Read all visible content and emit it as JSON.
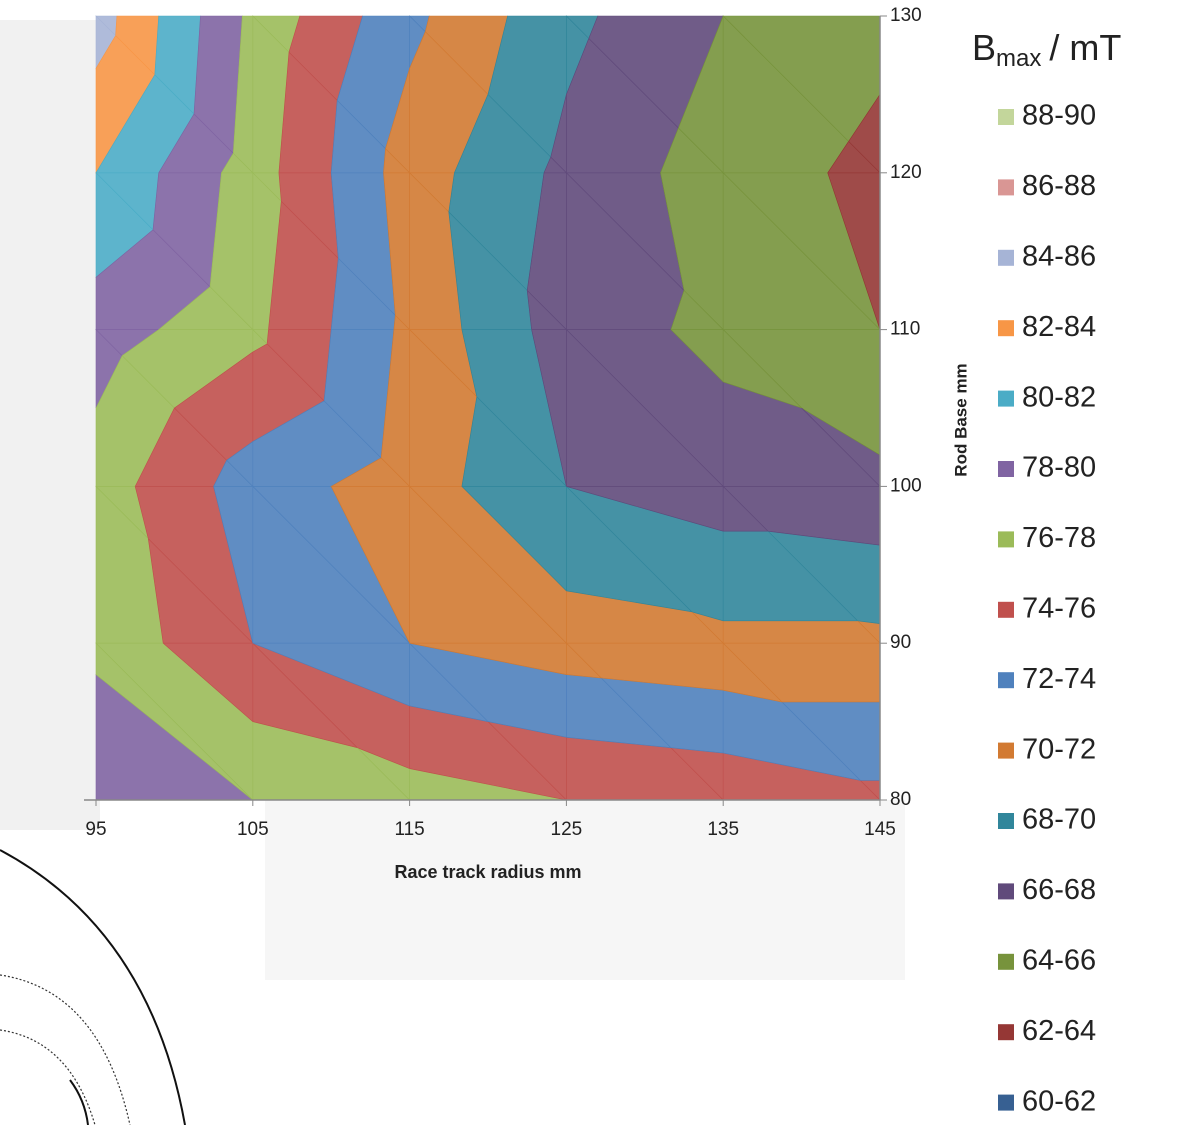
{
  "chart_data": {
    "type": "contour",
    "x_label": "Race track radius mm",
    "y_label": "Rod Base mm",
    "legend_title": {
      "base": "B",
      "sub": "max",
      "unit": "/ mT"
    },
    "x": [
      95,
      105,
      115,
      125,
      135,
      145
    ],
    "y": [
      80,
      90,
      100,
      110,
      120,
      130
    ],
    "z": [
      [
        80,
        78,
        77,
        76,
        75.5,
        74.5
      ],
      [
        77.5,
        74,
        72,
        71,
        70.5,
        70.5
      ],
      [
        77,
        73,
        71,
        68,
        67,
        66.5
      ],
      [
        79,
        76.5,
        71.5,
        67,
        65.5,
        64
      ],
      [
        82,
        77,
        71,
        67.5,
        65,
        63.5
      ],
      [
        85,
        77.5,
        72.5,
        68.5,
        66,
        64.5
      ]
    ],
    "xlim": [
      95,
      145
    ],
    "ylim": [
      80,
      130
    ],
    "xticks": [
      95,
      105,
      115,
      125,
      135,
      145
    ],
    "yticks": [
      80,
      90,
      100,
      110,
      120,
      130
    ],
    "bands": [
      {
        "label": "88-90",
        "color": "#c3d69b"
      },
      {
        "label": "86-88",
        "color": "#d99694"
      },
      {
        "label": "84-86",
        "color": "#a6b4d6"
      },
      {
        "label": "82-84",
        "color": "#f79646"
      },
      {
        "label": "80-82",
        "color": "#4bacc6"
      },
      {
        "label": "78-80",
        "color": "#8064a2"
      },
      {
        "label": "76-78",
        "color": "#9bbb59"
      },
      {
        "label": "74-76",
        "color": "#c0504d"
      },
      {
        "label": "72-74",
        "color": "#4f81bd"
      },
      {
        "label": "70-72",
        "color": "#d27a32"
      },
      {
        "label": "68-70",
        "color": "#31869b"
      },
      {
        "label": "66-68",
        "color": "#604a7b"
      },
      {
        "label": "64-66",
        "color": "#77933c"
      },
      {
        "label": "62-64",
        "color": "#953735"
      },
      {
        "label": "60-62",
        "color": "#376092"
      }
    ]
  }
}
